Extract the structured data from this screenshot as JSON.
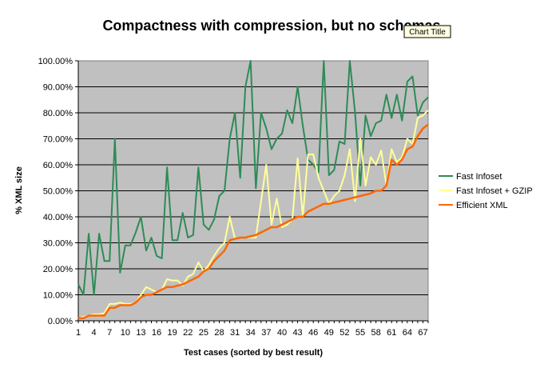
{
  "tooltip": "Chart Title",
  "chart_data": {
    "type": "line",
    "title": "Compactness with compression, but no schemas",
    "xlabel": "Test cases (sorted by best result)",
    "ylabel": "% XML size",
    "ylim": [
      0,
      100
    ],
    "x_range": [
      1,
      68
    ],
    "x_ticks": [
      "1",
      "4",
      "7",
      "10",
      "13",
      "16",
      "19",
      "22",
      "25",
      "28",
      "31",
      "34",
      "37",
      "40",
      "43",
      "46",
      "49",
      "52",
      "55",
      "58",
      "61",
      "64",
      "67"
    ],
    "y_ticks": [
      "0.00%",
      "10.00%",
      "20.00%",
      "30.00%",
      "40.00%",
      "50.00%",
      "60.00%",
      "70.00%",
      "80.00%",
      "90.00%",
      "100.00%"
    ],
    "grid": true,
    "legend_position": "right",
    "series": [
      {
        "name": "Fast Infoset",
        "color": "#2e8b57",
        "values": [
          14,
          10,
          33.5,
          10,
          33.5,
          23,
          23,
          70,
          18.5,
          29,
          29,
          34,
          40,
          27,
          32,
          25,
          24,
          59,
          31,
          31,
          41.5,
          32,
          33,
          59,
          37,
          35,
          39,
          48,
          50,
          70,
          80,
          55,
          90,
          100,
          51,
          80,
          74,
          66,
          70,
          72,
          81,
          76,
          90,
          75,
          62,
          60,
          57,
          100,
          56,
          58,
          69,
          68,
          100,
          80,
          52,
          79,
          71,
          76,
          77,
          87,
          78,
          87,
          77,
          92,
          94,
          79,
          84,
          86
        ]
      },
      {
        "name": "Fast Infoset + GZIP",
        "color": "#ffff99",
        "values": [
          1,
          1.5,
          2,
          2.5,
          2.5,
          3,
          6.5,
          6.5,
          7,
          6.5,
          6.5,
          7,
          10,
          13,
          12,
          11,
          12,
          16,
          15.5,
          15.5,
          13.5,
          17,
          18,
          22.5,
          19,
          21.5,
          25,
          28,
          30,
          40,
          31.5,
          32,
          32,
          32,
          32,
          46,
          60,
          37,
          47,
          36,
          37,
          39,
          62.5,
          40,
          64,
          64,
          55,
          50,
          45,
          48,
          50,
          56,
          66,
          46,
          70,
          52,
          63,
          60,
          65.5,
          52,
          66,
          61,
          63,
          70,
          68,
          78,
          79,
          81
        ]
      },
      {
        "name": "Efficient XML",
        "color": "#ff6600",
        "values": [
          1,
          1,
          2,
          2,
          2,
          2,
          5,
          5,
          6,
          6,
          6,
          7,
          9,
          10,
          10,
          11,
          12,
          13,
          13,
          13.5,
          14,
          15,
          16,
          17,
          19,
          20,
          23,
          25,
          27,
          31,
          31.5,
          32,
          32,
          32.5,
          33,
          34,
          35,
          36,
          36,
          37,
          38,
          39,
          40,
          40,
          42,
          43,
          44,
          45,
          45,
          45.5,
          46,
          46.5,
          47,
          47.5,
          48,
          48.5,
          49,
          50,
          50,
          52,
          62,
          60,
          62,
          66,
          67,
          71,
          74,
          75.5
        ]
      }
    ]
  }
}
